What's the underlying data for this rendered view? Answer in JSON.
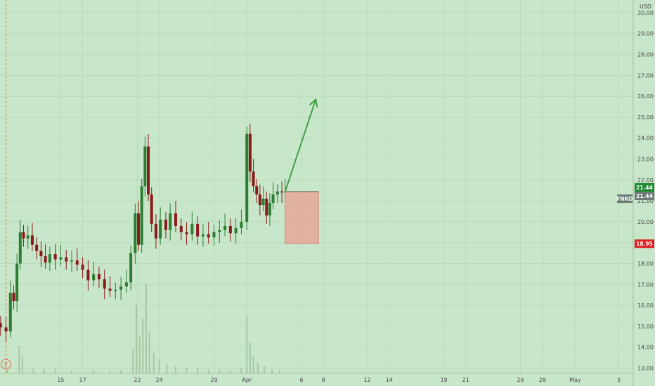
{
  "chart_data": {
    "type": "candlestick",
    "currency": "USD",
    "symbol": "FNKO",
    "y_ticks": [
      13,
      14,
      15,
      16,
      17,
      18,
      19,
      20,
      21,
      22,
      23,
      24,
      25,
      26,
      27,
      28,
      29,
      30
    ],
    "y_tick_labels": [
      "13.00",
      "14.00",
      "15.00",
      "16.00",
      "17.00",
      "18.00",
      "19.00",
      "20.00",
      "21.00",
      "22.00",
      "23.00",
      "24.00",
      "25.00",
      "26.00",
      "27.00",
      "28.00",
      "29.00",
      "30.00"
    ],
    "ylim": [
      12.75,
      30.6
    ],
    "x_labels": [
      {
        "day": 15,
        "text": "15"
      },
      {
        "day": 17,
        "text": "17"
      },
      {
        "day": 22,
        "text": "22"
      },
      {
        "day": 24,
        "text": "24"
      },
      {
        "day": 29,
        "text": "29"
      },
      {
        "day": 32,
        "text": "Apr"
      },
      {
        "day": 37,
        "text": "6"
      },
      {
        "day": 39,
        "text": "8"
      },
      {
        "day": 43,
        "text": "12"
      },
      {
        "day": 45,
        "text": "14"
      },
      {
        "day": 50,
        "text": "19"
      },
      {
        "day": 52,
        "text": "21"
      },
      {
        "day": 57,
        "text": "26"
      },
      {
        "day": 59,
        "text": "28"
      },
      {
        "day": 62,
        "text": "May"
      },
      {
        "day": 66,
        "text": "5"
      }
    ],
    "x_range_days": [
      9.45,
      67.3
    ],
    "price_badges": [
      {
        "value": 21.44,
        "text": "21.44",
        "color": "#1e8c2f"
      },
      {
        "value": 21.44,
        "text": "21.44",
        "color": "#6c7a76"
      },
      {
        "value": 18.95,
        "text": "18.95",
        "color": "#e01e1e"
      }
    ],
    "symbol_badge": {
      "text": "FNKO",
      "value": 21.1
    },
    "earnings_marker": {
      "text": "E",
      "day": 10.0
    },
    "close_series": [
      {
        "day": 9.5,
        "close": 14.95
      },
      {
        "day": 10.0,
        "close": 14.75
      },
      {
        "day": 10.4,
        "close": 16.6
      },
      {
        "day": 10.7,
        "close": 16.2
      },
      {
        "day": 11.0,
        "close": 18.0
      },
      {
        "day": 11.3,
        "close": 19.5
      },
      {
        "day": 11.6,
        "close": 19.2
      },
      {
        "day": 12.0,
        "close": 19.35
      },
      {
        "day": 12.4,
        "close": 18.9
      },
      {
        "day": 12.8,
        "close": 18.6
      },
      {
        "day": 13.2,
        "close": 18.35
      },
      {
        "day": 13.6,
        "close": 18.05
      },
      {
        "day": 14.0,
        "close": 18.45
      },
      {
        "day": 14.5,
        "close": 18.2
      },
      {
        "day": 15.0,
        "close": 18.3
      },
      {
        "day": 15.5,
        "close": 18.1
      },
      {
        "day": 16.0,
        "close": 18.15
      },
      {
        "day": 16.5,
        "close": 17.95
      },
      {
        "day": 17.0,
        "close": 17.7
      },
      {
        "day": 17.5,
        "close": 17.2
      },
      {
        "day": 18.0,
        "close": 17.5
      },
      {
        "day": 18.5,
        "close": 17.25
      },
      {
        "day": 19.0,
        "close": 16.8
      },
      {
        "day": 19.5,
        "close": 16.7
      },
      {
        "day": 20.0,
        "close": 16.75
      },
      {
        "day": 20.5,
        "close": 16.9
      },
      {
        "day": 21.0,
        "close": 17.1
      },
      {
        "day": 21.4,
        "close": 18.5
      },
      {
        "day": 21.8,
        "close": 20.4
      },
      {
        "day": 22.1,
        "close": 18.9
      },
      {
        "day": 22.4,
        "close": 21.7
      },
      {
        "day": 22.7,
        "close": 23.6
      },
      {
        "day": 23.0,
        "close": 21.3
      },
      {
        "day": 23.3,
        "close": 19.9
      },
      {
        "day": 23.7,
        "close": 19.2
      },
      {
        "day": 24.1,
        "close": 20.1
      },
      {
        "day": 24.6,
        "close": 19.6
      },
      {
        "day": 25.0,
        "close": 20.4
      },
      {
        "day": 25.5,
        "close": 19.8
      },
      {
        "day": 26.0,
        "close": 19.5
      },
      {
        "day": 26.5,
        "close": 19.4
      },
      {
        "day": 27.0,
        "close": 19.9
      },
      {
        "day": 27.5,
        "close": 19.3
      },
      {
        "day": 28.0,
        "close": 19.4
      },
      {
        "day": 28.5,
        "close": 19.25
      },
      {
        "day": 29.0,
        "close": 19.5
      },
      {
        "day": 29.5,
        "close": 19.6
      },
      {
        "day": 30.0,
        "close": 19.8
      },
      {
        "day": 30.5,
        "close": 19.45
      },
      {
        "day": 31.0,
        "close": 19.7
      },
      {
        "day": 31.5,
        "close": 20.0
      },
      {
        "day": 32.0,
        "close": 24.2
      },
      {
        "day": 32.3,
        "close": 22.4
      },
      {
        "day": 32.6,
        "close": 21.7
      },
      {
        "day": 32.9,
        "close": 21.3
      },
      {
        "day": 33.2,
        "close": 20.8
      },
      {
        "day": 33.5,
        "close": 21.1
      },
      {
        "day": 33.8,
        "close": 20.3
      },
      {
        "day": 34.1,
        "close": 20.9
      },
      {
        "day": 34.4,
        "close": 21.3
      },
      {
        "day": 34.8,
        "close": 21.45
      },
      {
        "day": 35.2,
        "close": 21.4
      },
      {
        "day": 35.5,
        "close": 21.44
      }
    ],
    "volume_series": [
      {
        "day": 10.1,
        "v": 0.05
      },
      {
        "day": 11.2,
        "v": 0.4
      },
      {
        "day": 11.5,
        "v": 0.25
      },
      {
        "day": 12.5,
        "v": 0.08
      },
      {
        "day": 13.5,
        "v": 0.06
      },
      {
        "day": 14.5,
        "v": 0.07
      },
      {
        "day": 16.0,
        "v": 0.05
      },
      {
        "day": 18.0,
        "v": 0.06
      },
      {
        "day": 19.5,
        "v": 0.04
      },
      {
        "day": 20.5,
        "v": 0.05
      },
      {
        "day": 21.6,
        "v": 0.35
      },
      {
        "day": 21.9,
        "v": 1.0
      },
      {
        "day": 22.2,
        "v": 0.55
      },
      {
        "day": 22.5,
        "v": 0.8
      },
      {
        "day": 22.8,
        "v": 1.3
      },
      {
        "day": 23.1,
        "v": 0.6
      },
      {
        "day": 23.5,
        "v": 0.3
      },
      {
        "day": 24.0,
        "v": 0.2
      },
      {
        "day": 24.7,
        "v": 0.15
      },
      {
        "day": 25.5,
        "v": 0.1
      },
      {
        "day": 26.5,
        "v": 0.08
      },
      {
        "day": 27.5,
        "v": 0.07
      },
      {
        "day": 28.5,
        "v": 0.06
      },
      {
        "day": 29.5,
        "v": 0.06
      },
      {
        "day": 30.5,
        "v": 0.05
      },
      {
        "day": 31.5,
        "v": 0.07
      },
      {
        "day": 32.0,
        "v": 0.85
      },
      {
        "day": 32.3,
        "v": 0.45
      },
      {
        "day": 32.6,
        "v": 0.25
      },
      {
        "day": 33.0,
        "v": 0.15
      },
      {
        "day": 33.6,
        "v": 0.1
      },
      {
        "day": 34.3,
        "v": 0.06
      },
      {
        "day": 35.0,
        "v": 0.05
      }
    ],
    "annotation_box": {
      "day_start": 35.5,
      "day_end": 38.55,
      "top": 21.44,
      "bottom": 18.95,
      "color": "#e8a090"
    },
    "arrow": {
      "from_day": 35.5,
      "from_value": 21.44,
      "to_day": 38.3,
      "to_value": 25.85,
      "color": "#43a047"
    },
    "colors": {
      "background": "#c8e6c9",
      "up_candle": "#2e7d32",
      "down_candle": "#8b1a1a",
      "volume": "#a5c8a6"
    }
  }
}
